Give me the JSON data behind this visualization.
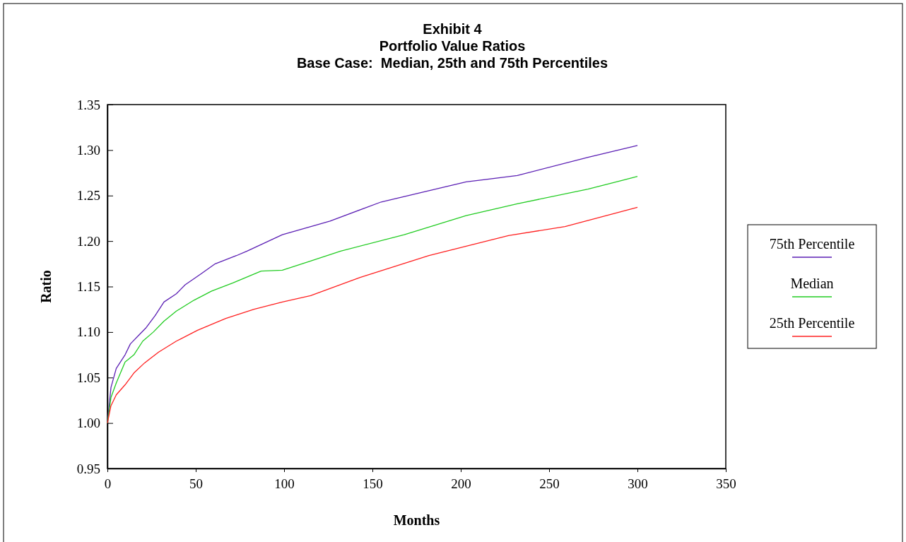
{
  "chart_data": {
    "type": "line",
    "title": "Exhibit 4\nPortfolio Value Ratios\nBase Case:  Median, 25th and 75th Percentiles",
    "xlabel": "Months",
    "ylabel": "Ratio",
    "xlim": [
      0,
      350
    ],
    "xticks": [
      0,
      50,
      100,
      150,
      200,
      250,
      300,
      350
    ],
    "ylim": [
      0.95,
      1.35
    ],
    "yticks": [
      {
        "value": 0.95,
        "label": "0.95"
      },
      {
        "value": 1.0,
        "label": "1.00"
      },
      {
        "value": 1.05,
        "label": "1.05"
      },
      {
        "value": 1.1,
        "label": "1.10"
      },
      {
        "value": 1.15,
        "label": "1.15"
      },
      {
        "value": 1.2,
        "label": "1.20"
      },
      {
        "value": 1.25,
        "label": "1.25"
      },
      {
        "value": 1.3,
        "label": "1.30"
      },
      {
        "value": 1.35,
        "label": "1.35"
      }
    ],
    "grid": false,
    "legend": "right",
    "marker": "none",
    "line_style": "solid",
    "series": [
      {
        "name": "75th Percentile",
        "color": "#5b1fb4",
        "x": [
          0,
          2,
          5,
          10,
          13,
          18,
          22,
          27,
          32,
          39,
          44,
          53,
          61,
          73,
          79,
          99,
          126,
          155,
          203,
          232,
          272,
          300
        ],
        "values": [
          1.0,
          1.039,
          1.06,
          1.075,
          1.087,
          1.097,
          1.105,
          1.118,
          1.133,
          1.142,
          1.152,
          1.164,
          1.175,
          1.184,
          1.189,
          1.207,
          1.222,
          1.243,
          1.265,
          1.272,
          1.292,
          1.305
        ]
      },
      {
        "name": "Median",
        "color": "#22cc22",
        "x": [
          0,
          2,
          5,
          10,
          15,
          20,
          26,
          32,
          39,
          49,
          59,
          71,
          87,
          99,
          115,
          132,
          168,
          203,
          232,
          272,
          300
        ],
        "values": [
          1.0,
          1.028,
          1.044,
          1.067,
          1.075,
          1.09,
          1.1,
          1.112,
          1.123,
          1.135,
          1.145,
          1.154,
          1.167,
          1.168,
          1.178,
          1.189,
          1.207,
          1.228,
          1.241,
          1.257,
          1.271
        ]
      },
      {
        "name": "25th Percentile",
        "color": "#ff2020",
        "x": [
          0,
          2,
          5,
          10,
          15,
          21,
          29,
          39,
          51,
          67,
          83,
          99,
          115,
          143,
          182,
          227,
          259,
          300
        ],
        "values": [
          1.0,
          1.019,
          1.031,
          1.042,
          1.055,
          1.066,
          1.078,
          1.09,
          1.102,
          1.115,
          1.125,
          1.133,
          1.14,
          1.16,
          1.184,
          1.206,
          1.216,
          1.237
        ]
      }
    ]
  }
}
